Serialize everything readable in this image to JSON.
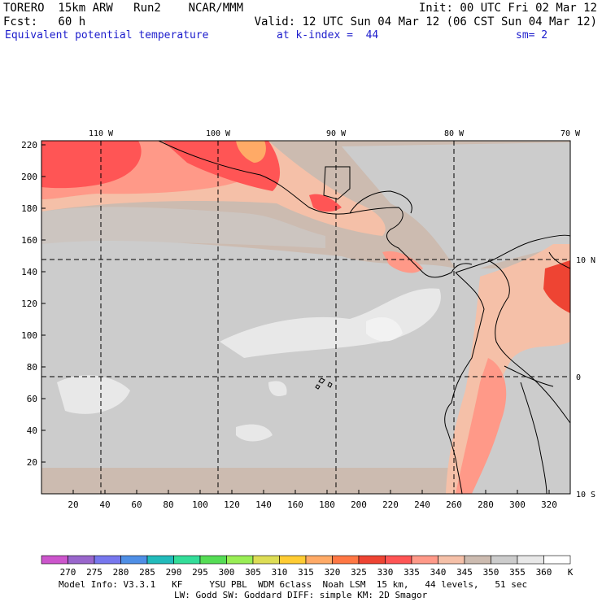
{
  "header": {
    "model": "TORERO  15km ARW   Run2    NCAR/MMM",
    "init": "Init: 00 UTC Fri 02 Mar 12",
    "fcst": "Fcst:   60 h",
    "valid": "Valid: 12 UTC Sun 04 Mar 12 (06 CST Sun 04 Mar 12)",
    "field": "Equivalent potential temperature",
    "level": "at k-index =  44",
    "smooth": "sm= 2"
  },
  "map": {
    "lon_labels": [
      "110 W",
      "100 W",
      "90 W",
      "80 W",
      "70 W"
    ],
    "lat_labels": [
      "10 N",
      "0",
      "10 S"
    ],
    "y_ticks": [
      "20",
      "40",
      "60",
      "80",
      "100",
      "120",
      "140",
      "160",
      "180",
      "200",
      "220"
    ],
    "x_ticks": [
      "20",
      "40",
      "60",
      "80",
      "100",
      "120",
      "140",
      "160",
      "180",
      "200",
      "220",
      "240",
      "260",
      "280",
      "300",
      "320"
    ]
  },
  "colorbar": {
    "labels": [
      "270",
      "275",
      "280",
      "285",
      "290",
      "295",
      "300",
      "305",
      "310",
      "315",
      "320",
      "325",
      "330",
      "335",
      "340",
      "345",
      "350",
      "355",
      "360",
      "K"
    ],
    "colors": [
      "#cc55cc",
      "#9966cc",
      "#7777ee",
      "#4f8fe6",
      "#22bbbb",
      "#33dd99",
      "#55dd55",
      "#99ee55",
      "#dddd55",
      "#ffcc33",
      "#ffaa66",
      "#ff7744",
      "#ee4433",
      "#ff5555",
      "#ff9988",
      "#f5c0a8",
      "#ccbbb0",
      "#cccccc",
      "#e8e8e8",
      "#ffffff"
    ]
  },
  "footer": {
    "line1": "Model Info: V3.3.1   KF     YSU PBL  WDM 6class  Noah LSM  15 km,   44 levels,   51 sec",
    "line2": "LW: Godd SW: Goddard DIFF: simple KM: 2D Smagor"
  }
}
